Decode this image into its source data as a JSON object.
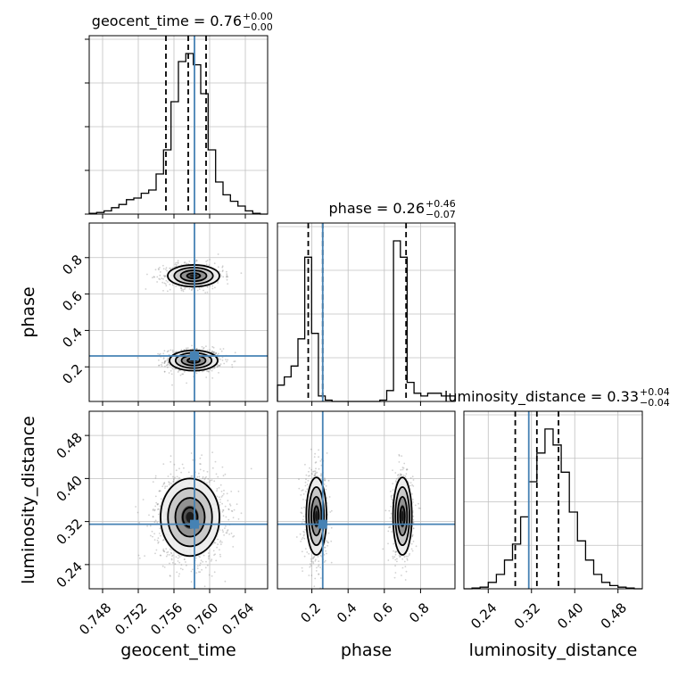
{
  "chart_data": {
    "type": "corner",
    "colors": {
      "truth": "#4682b4",
      "line": "#000000",
      "grid": "#c0c0c0",
      "scatter": "#7a7a7a"
    },
    "parameters": [
      {
        "name": "geocent_time",
        "truth": 0.7583,
        "range": [
          0.7465,
          0.7665
        ],
        "ticks": [
          "0.748",
          "0.752",
          "0.756",
          "0.760",
          "0.764"
        ]
      },
      {
        "name": "phase",
        "truth": 0.26,
        "range": [
          0.01,
          0.99
        ],
        "ticks": [
          "0.2",
          "0.4",
          "0.6",
          "0.8"
        ]
      },
      {
        "name": "luminosity_distance",
        "truth": 0.315,
        "range": [
          0.195,
          0.525
        ],
        "ticks": [
          "0.24",
          "0.32",
          "0.40",
          "0.48"
        ]
      }
    ],
    "titles": [
      {
        "name": "geocent_time",
        "median": "0.76",
        "plus": "+0.00",
        "minus": "−0.00"
      },
      {
        "name": "phase",
        "median": "0.26",
        "plus": "+0.46",
        "minus": "−0.07"
      },
      {
        "name": "luminosity_distance",
        "median": "0.33",
        "plus": "+0.04",
        "minus": "−0.04"
      }
    ],
    "quantiles": [
      [
        0.7551,
        0.7576,
        0.7596
      ],
      [
        0.18,
        0.26,
        0.72
      ],
      [
        0.29,
        0.33,
        0.37
      ]
    ],
    "histograms": [
      {
        "start": 0.7465,
        "end": 0.7665,
        "counts": [
          0.5,
          1,
          2,
          4,
          6,
          9,
          10,
          13,
          15,
          25,
          40,
          70,
          95,
          100,
          93,
          75,
          40,
          20,
          12,
          8,
          5,
          2,
          0.5,
          0
        ]
      },
      {
        "start": 0.01,
        "end": 0.99,
        "counts": [
          6,
          9,
          13,
          23,
          53,
          25,
          2,
          0.5,
          0,
          0,
          0,
          0,
          0,
          0,
          0,
          0.5,
          4,
          59,
          53,
          7,
          3,
          2,
          3,
          3,
          2,
          2
        ]
      },
      {
        "start": 0.195,
        "end": 0.525,
        "counts": [
          0,
          0.5,
          1,
          4,
          9,
          18,
          28,
          45,
          67,
          85,
          100,
          90,
          73,
          48,
          30,
          18,
          9,
          4,
          2,
          1,
          0.5,
          0
        ]
      }
    ],
    "clusters": {
      "geocent_time|phase": [
        {
          "cx": 0.7582,
          "cy": 0.235,
          "sx": 0.00135,
          "sy": 0.028,
          "weight": 0.54
        },
        {
          "cx": 0.7582,
          "cy": 0.7,
          "sx": 0.00145,
          "sy": 0.03,
          "weight": 0.46
        }
      ],
      "geocent_time|luminosity_distance": [
        {
          "cx": 0.7578,
          "cy": 0.328,
          "sx": 0.00165,
          "sy": 0.036,
          "weight": 1.0
        }
      ],
      "phase|luminosity_distance": [
        {
          "cx": 0.225,
          "cy": 0.33,
          "sx": 0.028,
          "sy": 0.036,
          "weight": 0.54
        },
        {
          "cx": 0.7,
          "cy": 0.33,
          "sx": 0.026,
          "sy": 0.036,
          "weight": 0.46
        }
      ]
    }
  }
}
